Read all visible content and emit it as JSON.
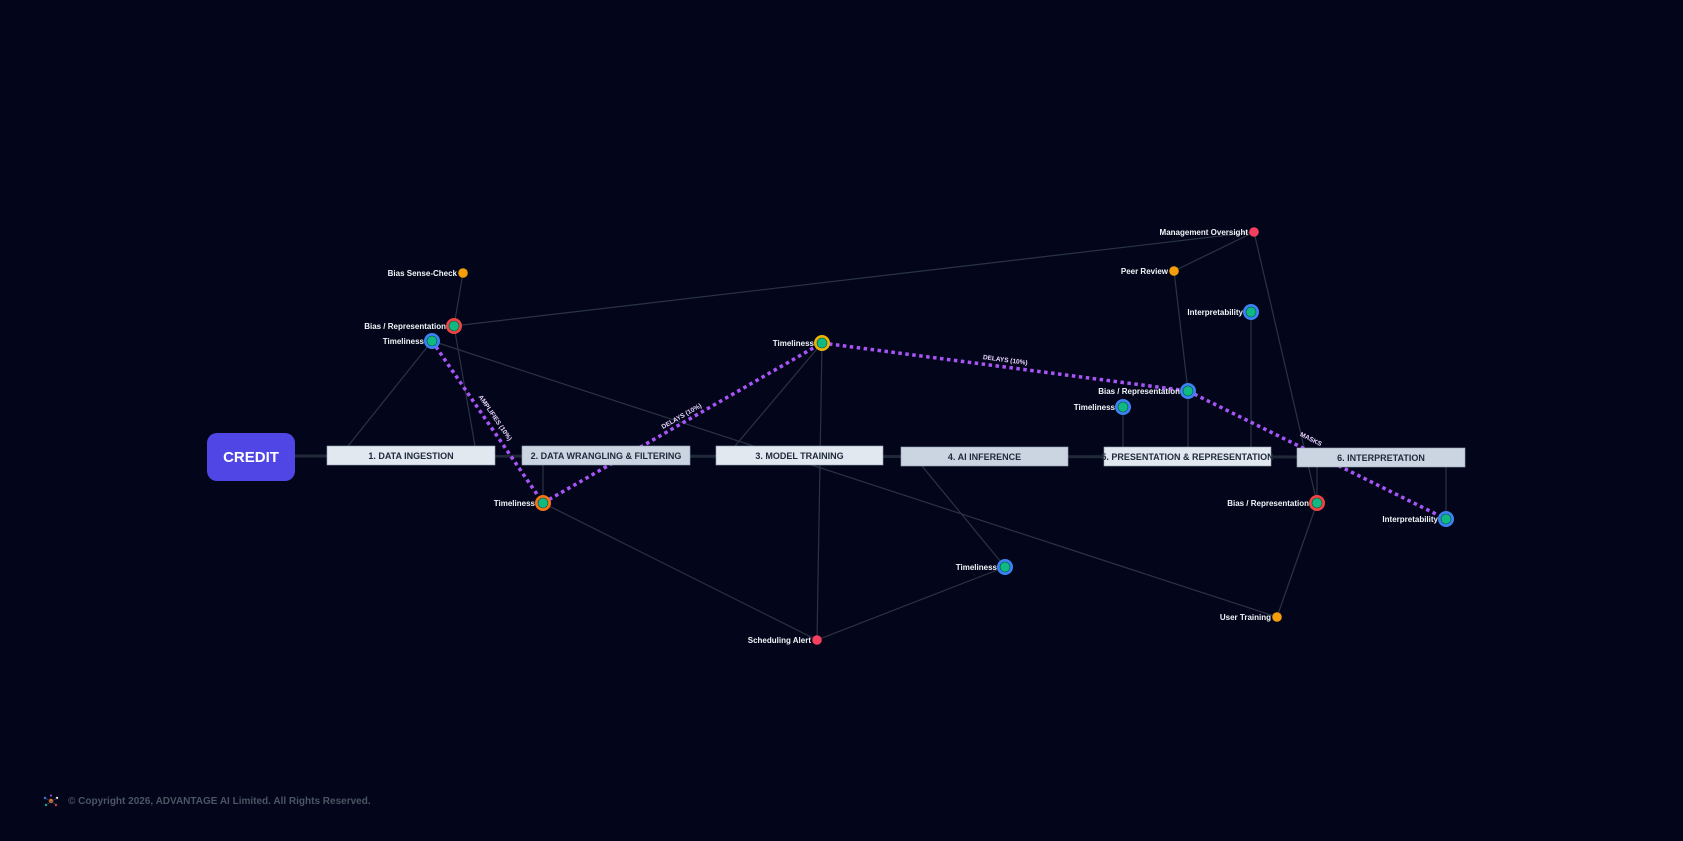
{
  "root": {
    "label": "CREDIT",
    "color": "#4f46e5"
  },
  "stages": [
    {
      "id": "s1",
      "label": "1. DATA INGESTION"
    },
    {
      "id": "s2",
      "label": "2. DATA WRANGLING & FILTERING"
    },
    {
      "id": "s3",
      "label": "3. MODEL TRAINING"
    },
    {
      "id": "s4",
      "label": "4. AI INFERENCE"
    },
    {
      "id": "s5",
      "label": "5. PRESENTATION & REPRESENTATION"
    },
    {
      "id": "s6",
      "label": "6. INTERPRETATION"
    }
  ],
  "nodes": [
    {
      "id": "n1",
      "label": "Bias Sense-Check",
      "kind": "control",
      "color": "#f59e0b"
    },
    {
      "id": "n2",
      "label": "Bias / Representation",
      "kind": "risk",
      "color": "#ef4444"
    },
    {
      "id": "n3",
      "label": "Timeliness",
      "kind": "risk",
      "color": "#3b82f6"
    },
    {
      "id": "n4",
      "label": "Timeliness",
      "kind": "risk",
      "color": "#f97316"
    },
    {
      "id": "n5",
      "label": "Timeliness",
      "kind": "risk",
      "color": "#eab308"
    },
    {
      "id": "n6",
      "label": "Scheduling Alert",
      "kind": "control",
      "color": "#f43f5e"
    },
    {
      "id": "n7",
      "label": "Timeliness",
      "kind": "risk",
      "color": "#3b82f6"
    },
    {
      "id": "n8",
      "label": "Management Oversight",
      "kind": "control",
      "color": "#f43f5e"
    },
    {
      "id": "n9",
      "label": "Peer Review",
      "kind": "control",
      "color": "#f59e0b"
    },
    {
      "id": "n10",
      "label": "Interpretability",
      "kind": "risk",
      "color": "#3b82f6"
    },
    {
      "id": "n11",
      "label": "Bias / Representation",
      "kind": "risk",
      "color": "#3b82f6"
    },
    {
      "id": "n12",
      "label": "Timeliness",
      "kind": "risk",
      "color": "#3b82f6"
    },
    {
      "id": "n13",
      "label": "Bias / Representation",
      "kind": "risk",
      "color": "#ef4444"
    },
    {
      "id": "n14",
      "label": "Interpretability",
      "kind": "risk",
      "color": "#3b82f6"
    },
    {
      "id": "n15",
      "label": "User Training",
      "kind": "control",
      "color": "#f59e0b"
    }
  ],
  "influences": [
    {
      "from": "n3",
      "to": "n4",
      "label": "AMPLIFIES (10%)"
    },
    {
      "from": "n4",
      "to": "n5",
      "label": "DELAYS (10%)"
    },
    {
      "from": "n5",
      "to": "n11",
      "label": "DELAYS (10%)"
    },
    {
      "from": "n11",
      "to": "n14",
      "label": "MASKS"
    }
  ],
  "colors": {
    "background": "#03061a",
    "edge": "#2a3344",
    "influence": "#a855f7",
    "risk_core": "#10b981"
  },
  "footer": {
    "copyright": "© Copyright 2026, ADVANTAGE AI Limited. All Rights Reserved."
  }
}
